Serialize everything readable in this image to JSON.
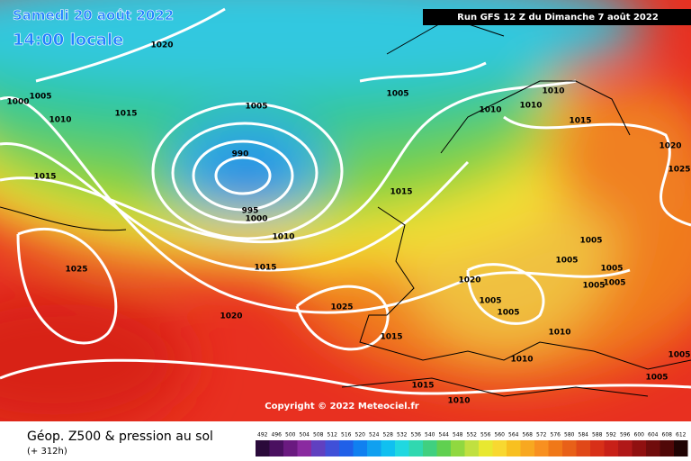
{
  "header": {
    "date": "Samedi 20 août 2022",
    "time": "14:00 locale",
    "run": "Run GFS 12 Z du Dimanche 7 août 2022"
  },
  "copyright": "Copyright © 2022 Meteociel.fr",
  "footer": {
    "title": "Géop. Z500 & pression au sol",
    "lead": "(+ 312h)"
  },
  "legend": {
    "labels": [
      492,
      496,
      500,
      504,
      508,
      512,
      516,
      520,
      524,
      528,
      532,
      536,
      540,
      544,
      548,
      552,
      556,
      560,
      564,
      568,
      572,
      576,
      580,
      584,
      588,
      592,
      596,
      600,
      604,
      608,
      612
    ]
  },
  "isobar_labels": [
    1020,
    1005,
    1000,
    1010,
    1015,
    1005,
    1005,
    1010,
    1010,
    1010,
    1015,
    1020,
    1025,
    990,
    995,
    1000,
    1015,
    1015,
    1010,
    1005,
    1005,
    1015,
    1025,
    1005,
    1005,
    1005,
    1020,
    1005,
    1005,
    1020,
    1025,
    1010,
    1015,
    1010,
    1005,
    1015,
    1010,
    1005
  ]
}
